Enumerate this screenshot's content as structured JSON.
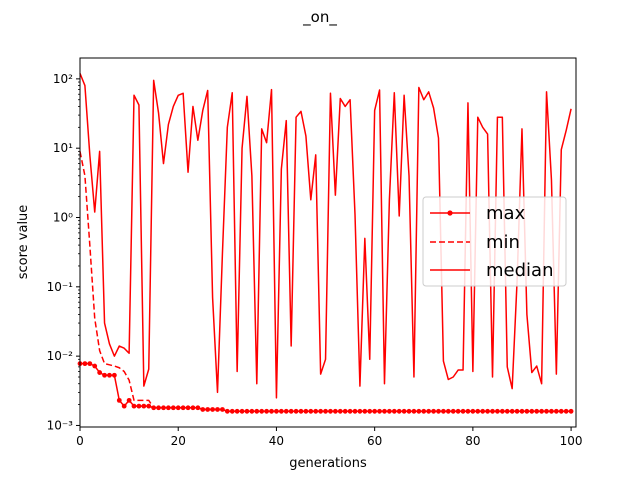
{
  "chart_data": {
    "type": "line",
    "title": "_on_",
    "xlabel": "generations",
    "ylabel": "score value",
    "xlim": [
      0,
      101
    ],
    "ylim": [
      0.00095,
      200
    ],
    "yscale": "log",
    "grid": false,
    "legend_placement": "center-right",
    "x_ticks": [
      0,
      20,
      40,
      60,
      80,
      100
    ],
    "x_tick_labels": [
      "0",
      "20",
      "40",
      "60",
      "80",
      "100"
    ],
    "y_ticks": [
      0.001,
      0.01,
      0.1,
      1,
      10,
      100
    ],
    "y_tick_labels": [
      "10⁻³",
      "10⁻²",
      "10⁻¹",
      "10⁰",
      "10¹",
      "10²"
    ],
    "color": "#ff0000",
    "series": [
      {
        "name": "max",
        "style": "solid-dot",
        "x": [
          0,
          1,
          2,
          3,
          4,
          5,
          6,
          7,
          8,
          9,
          10,
          11,
          12,
          13,
          14,
          15,
          16,
          17,
          18,
          19,
          20,
          21,
          22,
          23,
          24,
          25,
          26,
          27,
          28,
          29,
          30,
          31,
          32,
          33,
          34,
          35,
          36,
          37,
          38,
          39,
          40,
          41,
          42,
          43,
          44,
          45,
          46,
          47,
          48,
          49,
          50,
          51,
          52,
          53,
          54,
          55,
          56,
          57,
          58,
          59,
          60,
          61,
          62,
          63,
          64,
          65,
          66,
          67,
          68,
          69,
          70,
          71,
          72,
          73,
          74,
          75,
          76,
          77,
          78,
          79,
          80,
          81,
          82,
          83,
          84,
          85,
          86,
          87,
          88,
          89,
          90,
          91,
          92,
          93,
          94,
          95,
          96,
          97,
          98,
          99,
          100
        ],
        "values": [
          0.0078,
          0.0078,
          0.0078,
          0.0072,
          0.0058,
          0.0053,
          0.0053,
          0.0053,
          0.0023,
          0.0019,
          0.0023,
          0.0019,
          0.0019,
          0.0019,
          0.0019,
          0.0018,
          0.0018,
          0.0018,
          0.0018,
          0.0018,
          0.0018,
          0.0018,
          0.0018,
          0.0018,
          0.0018,
          0.0017,
          0.0017,
          0.0017,
          0.0017,
          0.0017,
          0.0016,
          0.0016,
          0.0016,
          0.0016,
          0.0016,
          0.0016,
          0.0016,
          0.0016,
          0.0016,
          0.0016,
          0.0016,
          0.0016,
          0.0016,
          0.0016,
          0.0016,
          0.0016,
          0.0016,
          0.0016,
          0.0016,
          0.0016,
          0.0016,
          0.0016,
          0.0016,
          0.0016,
          0.0016,
          0.0016,
          0.0016,
          0.0016,
          0.0016,
          0.0016,
          0.0016,
          0.0016,
          0.0016,
          0.0016,
          0.0016,
          0.0016,
          0.0016,
          0.0016,
          0.0016,
          0.0016,
          0.0016,
          0.0016,
          0.0016,
          0.0016,
          0.0016,
          0.0016,
          0.0016,
          0.0016,
          0.0016,
          0.0016,
          0.0016,
          0.0016,
          0.0016,
          0.0016,
          0.0016,
          0.0016,
          0.0016,
          0.0016,
          0.0016,
          0.0016,
          0.0016,
          0.0016,
          0.0016,
          0.0016,
          0.0016,
          0.0016,
          0.0016,
          0.0016,
          0.0016,
          0.0016,
          0.0016
        ]
      },
      {
        "name": "min",
        "style": "dashed",
        "x": [
          0,
          1,
          2,
          3,
          4,
          5,
          6,
          7,
          8,
          9,
          10,
          11,
          12,
          13,
          14,
          15,
          16,
          17,
          18,
          19,
          20,
          21,
          22,
          23,
          24,
          25,
          26,
          27,
          28,
          29,
          30,
          31,
          32,
          33,
          34,
          35,
          36,
          37,
          38,
          39,
          40,
          41,
          42,
          43,
          44,
          45,
          46,
          47,
          48,
          49,
          50,
          51,
          52,
          53,
          54,
          55,
          56,
          57,
          58,
          59,
          60,
          61,
          62,
          63,
          64,
          65,
          66,
          67,
          68,
          69,
          70,
          71,
          72,
          73,
          74,
          75,
          76,
          77,
          78,
          79,
          80,
          81,
          82,
          83,
          84,
          85,
          86,
          87,
          88,
          89,
          90,
          91,
          92,
          93,
          94,
          95,
          96,
          97,
          98,
          99,
          100
        ],
        "values": [
          9.0,
          4.0,
          0.4,
          0.035,
          0.012,
          0.0078,
          0.0075,
          0.0072,
          0.0068,
          0.006,
          0.0045,
          0.0023,
          0.0023,
          0.0023,
          0.0023,
          0.0018,
          0.0018,
          0.0018,
          0.0018,
          0.0018,
          0.0018,
          0.0018,
          0.0018,
          0.0018,
          0.0018,
          0.0017,
          0.0017,
          0.0017,
          0.0017,
          0.0017,
          0.0016,
          0.0016,
          0.0016,
          0.0016,
          0.0016,
          0.0016,
          0.0016,
          0.0016,
          0.0016,
          0.0016,
          0.0016,
          0.0016,
          0.0016,
          0.0016,
          0.0016,
          0.0016,
          0.0016,
          0.0016,
          0.0016,
          0.0016,
          0.0016,
          0.0016,
          0.0016,
          0.0016,
          0.0016,
          0.0016,
          0.0016,
          0.0016,
          0.0016,
          0.0016,
          0.0016,
          0.0016,
          0.0016,
          0.0016,
          0.0016,
          0.0016,
          0.0016,
          0.0016,
          0.0016,
          0.0016,
          0.0016,
          0.0016,
          0.0016,
          0.0016,
          0.0016,
          0.0016,
          0.0016,
          0.0016,
          0.0016,
          0.0016,
          0.0016,
          0.0016,
          0.0016,
          0.0016,
          0.0016,
          0.0016,
          0.0016,
          0.0016,
          0.0016,
          0.0016,
          0.0016,
          0.0016,
          0.0016,
          0.0016,
          0.0016,
          0.0016,
          0.0016,
          0.0016,
          0.0016,
          0.0016,
          0.0016
        ]
      },
      {
        "name": "median",
        "style": "solid",
        "x": [
          0,
          1,
          2,
          3,
          4,
          5,
          6,
          7,
          8,
          9,
          10,
          11,
          12,
          13,
          14,
          15,
          16,
          17,
          18,
          19,
          20,
          21,
          22,
          23,
          24,
          25,
          26,
          27,
          28,
          29,
          30,
          31,
          32,
          33,
          34,
          35,
          36,
          37,
          38,
          39,
          40,
          41,
          42,
          43,
          44,
          45,
          46,
          47,
          48,
          49,
          50,
          51,
          52,
          53,
          54,
          55,
          56,
          57,
          58,
          59,
          60,
          61,
          62,
          63,
          64,
          65,
          66,
          67,
          68,
          69,
          70,
          71,
          72,
          73,
          74,
          75,
          76,
          77,
          78,
          79,
          80,
          81,
          82,
          83,
          84,
          85,
          86,
          87,
          88,
          89,
          90,
          91,
          92,
          93,
          94,
          95,
          96,
          97,
          98,
          99,
          100
        ],
        "values": [
          120,
          80,
          8,
          1.2,
          9,
          0.03,
          0.015,
          0.01,
          0.014,
          0.013,
          0.011,
          58,
          42,
          0.0037,
          0.0065,
          95,
          32,
          6,
          22,
          40,
          58,
          62,
          4.5,
          40,
          13,
          35,
          68,
          0.07,
          0.003,
          0.3,
          20,
          63,
          0.006,
          10,
          56,
          4,
          0.004,
          19,
          12,
          70,
          0.0025,
          5,
          25,
          0.014,
          28,
          34,
          15,
          1.8,
          8,
          0.0055,
          0.009,
          62,
          2.1,
          52,
          40,
          50,
          1.1,
          0.0037,
          0.5,
          0.009,
          35,
          69,
          0.004,
          1.8,
          63,
          1.05,
          58,
          4,
          0.005,
          75,
          50,
          65,
          38,
          14,
          0.0085,
          0.0046,
          0.005,
          0.0063,
          0.0063,
          45,
          0.006,
          28,
          20,
          16,
          0.005,
          28,
          28,
          0.007,
          0.0034,
          0.12,
          19,
          0.04,
          0.0058,
          0.0072,
          0.004,
          65,
          3.5,
          0.0055,
          9.5,
          18,
          37
        ]
      }
    ]
  }
}
